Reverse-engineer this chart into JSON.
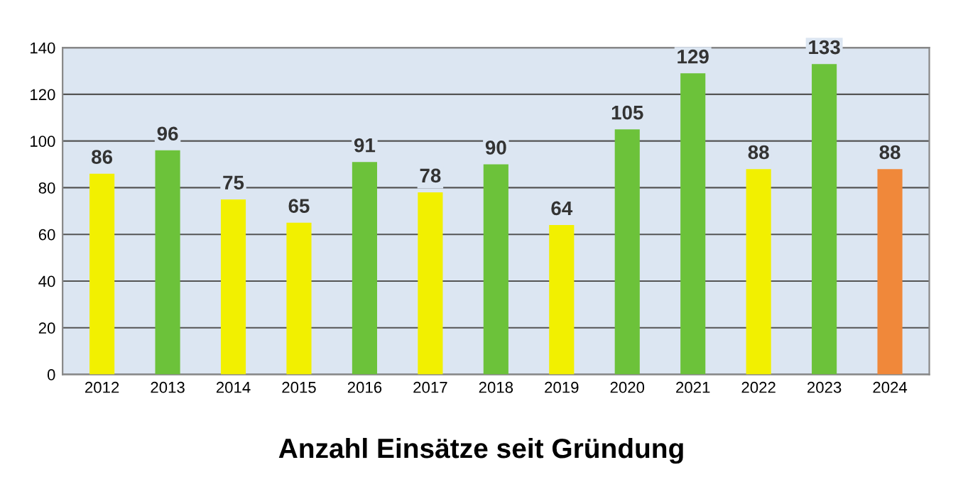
{
  "chart_data": {
    "type": "bar",
    "title": "Anzahl Einsätze seit Gründung",
    "categories": [
      "2012",
      "2013",
      "2014",
      "2015",
      "2016",
      "2017",
      "2018",
      "2019",
      "2020",
      "2021",
      "2022",
      "2023",
      "2024"
    ],
    "values": [
      86,
      96,
      75,
      65,
      91,
      78,
      90,
      64,
      105,
      129,
      88,
      133,
      88
    ],
    "colors": [
      "#f2f000",
      "#6cc23a",
      "#f2f000",
      "#f2f000",
      "#6cc23a",
      "#f2f000",
      "#6cc23a",
      "#f2f000",
      "#6cc23a",
      "#6cc23a",
      "#f2f000",
      "#6cc23a",
      "#f0883a"
    ],
    "ylim": [
      0,
      140
    ],
    "yticks": [
      0,
      20,
      40,
      60,
      80,
      100,
      120,
      140
    ],
    "grid": "y",
    "data_labels": true
  }
}
